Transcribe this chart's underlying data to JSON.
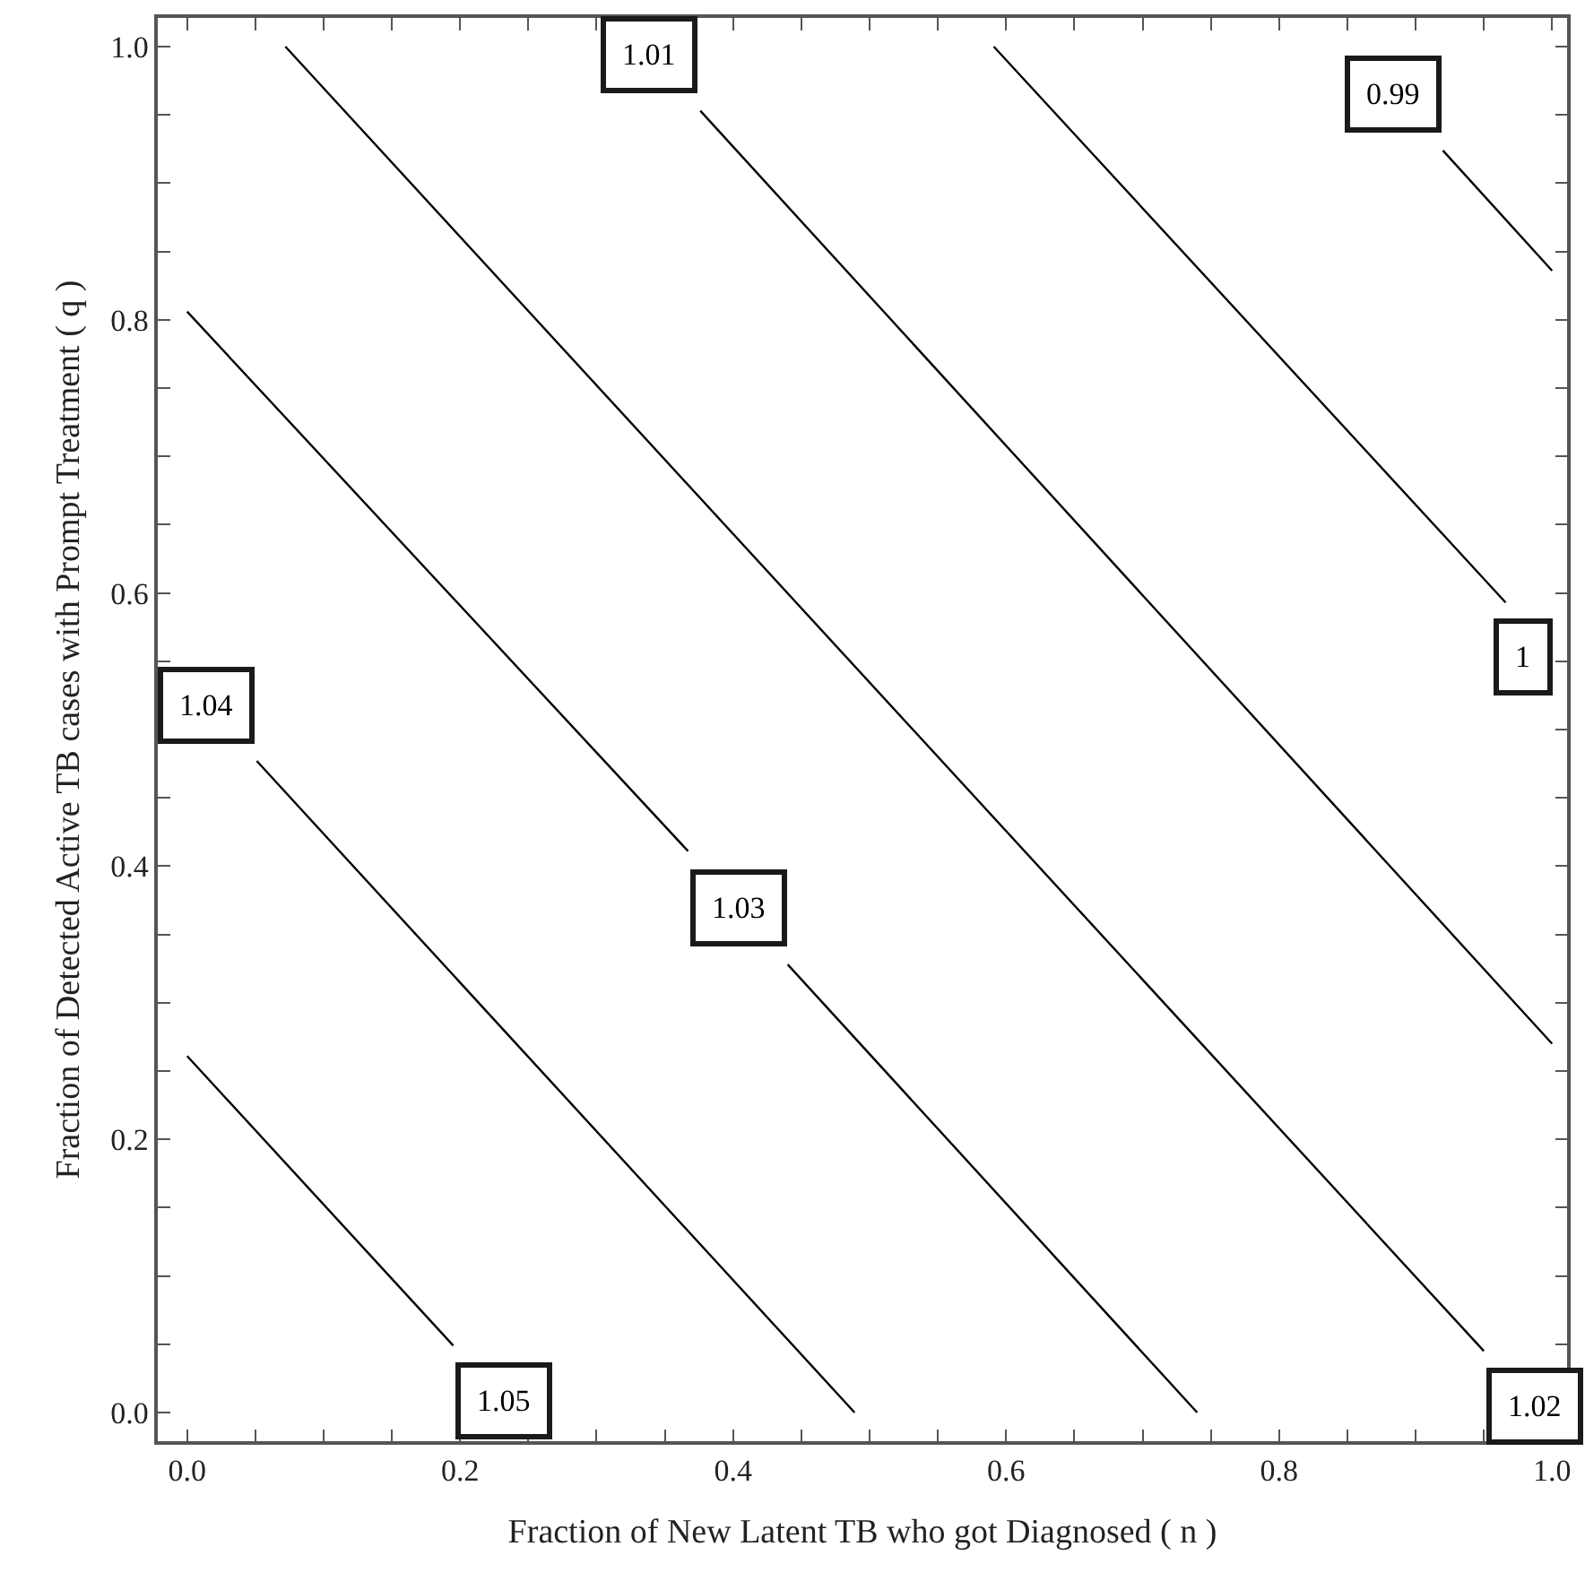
{
  "chart_data": {
    "type": "line",
    "xlabel": "Fraction of New Latent TB who got Diagnosed ( n )",
    "ylabel": "Fraction of Detected Active TB cases with Prompt Treatment ( q )",
    "series": [
      {
        "name": "1.05",
        "color": "#000000",
        "x": [
          0.0,
          0.195
        ],
        "values": [
          0.261,
          0.049
        ]
      },
      {
        "name": "1.04",
        "color": "#000000",
        "x": [
          0.051,
          0.489
        ],
        "values": [
          0.477,
          0.0
        ]
      },
      {
        "name": "1.03",
        "color": "#000000",
        "x": [
          0.0,
          0.367,
          null,
          0.44,
          0.74
        ],
        "values": [
          0.806,
          0.411,
          null,
          0.328,
          0.0
        ]
      },
      {
        "name": "1.02",
        "color": "#000000",
        "x": [
          0.072,
          0.95
        ],
        "values": [
          1.0,
          0.045
        ]
      },
      {
        "name": "1.01",
        "color": "#000000",
        "x": [
          0.376,
          1.0
        ],
        "values": [
          0.953,
          0.27
        ]
      },
      {
        "name": "1",
        "color": "#000000",
        "x": [
          0.591,
          0.966
        ],
        "values": [
          1.0,
          0.593
        ]
      },
      {
        "name": "0.99",
        "color": "#000000",
        "x": [
          0.92,
          1.0
        ],
        "values": [
          0.924,
          0.836
        ]
      }
    ],
    "xlim": [
      -0.0215,
      1.011
    ],
    "ylim": [
      -0.021,
      1.021
    ],
    "xticks": [
      {
        "value": 0.0,
        "label": "0.0"
      },
      {
        "value": 0.05,
        "label": null
      },
      {
        "value": 0.1,
        "label": null
      },
      {
        "value": 0.15,
        "label": null
      },
      {
        "value": 0.2,
        "label": "0.2"
      },
      {
        "value": 0.25,
        "label": null
      },
      {
        "value": 0.3,
        "label": null
      },
      {
        "value": 0.35,
        "label": null
      },
      {
        "value": 0.4,
        "label": "0.4"
      },
      {
        "value": 0.45,
        "label": null
      },
      {
        "value": 0.5,
        "label": null
      },
      {
        "value": 0.55,
        "label": null
      },
      {
        "value": 0.6,
        "label": "0.6"
      },
      {
        "value": 0.65,
        "label": null
      },
      {
        "value": 0.7,
        "label": null
      },
      {
        "value": 0.75,
        "label": null
      },
      {
        "value": 0.8,
        "label": "0.8"
      },
      {
        "value": 0.85,
        "label": null
      },
      {
        "value": 0.9,
        "label": null
      },
      {
        "value": 0.95,
        "label": null
      },
      {
        "value": 1.0,
        "label": "1.0"
      }
    ],
    "yticks": [
      {
        "value": 0.0,
        "label": "0.0"
      },
      {
        "value": 0.05,
        "label": null
      },
      {
        "value": 0.1,
        "label": null
      },
      {
        "value": 0.15,
        "label": null
      },
      {
        "value": 0.2,
        "label": "0.2"
      },
      {
        "value": 0.25,
        "label": null
      },
      {
        "value": 0.3,
        "label": null
      },
      {
        "value": 0.35,
        "label": null
      },
      {
        "value": 0.4,
        "label": "0.4"
      },
      {
        "value": 0.45,
        "label": null
      },
      {
        "value": 0.5,
        "label": null
      },
      {
        "value": 0.55,
        "label": null
      },
      {
        "value": 0.6,
        "label": "0.6"
      },
      {
        "value": 0.65,
        "label": null
      },
      {
        "value": 0.7,
        "label": null
      },
      {
        "value": 0.75,
        "label": null
      },
      {
        "value": 0.8,
        "label": "0.8"
      },
      {
        "value": 0.85,
        "label": null
      },
      {
        "value": 0.9,
        "label": null
      },
      {
        "value": 0.95,
        "label": null
      },
      {
        "value": 1.0,
        "label": "1.0"
      }
    ],
    "legend": false,
    "marker": "none",
    "line_style": "solid"
  }
}
